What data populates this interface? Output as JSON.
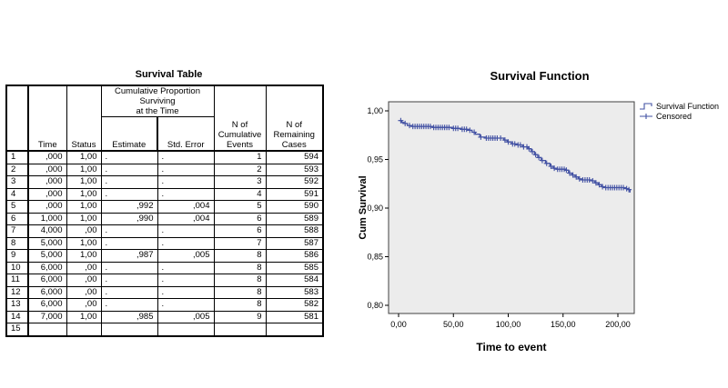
{
  "table": {
    "title": "Survival Table",
    "headers": {
      "time": "Time",
      "status": "Status",
      "cps_group": "Cumulative Proportion Surviving at the Time",
      "cps_lines": [
        "Cumulative Proportion Surviving",
        "at the Time"
      ],
      "estimate": "Estimate",
      "std_error": "Std. Error",
      "n_events": "N of Cumulative Events",
      "n_remaining": "N of Remaining Cases"
    },
    "rows": [
      {
        "n": "1",
        "time": ",000",
        "status": "1,00",
        "estimate": ".",
        "std_error": ".",
        "events": "1",
        "remaining": "594"
      },
      {
        "n": "2",
        "time": ",000",
        "status": "1,00",
        "estimate": ".",
        "std_error": ".",
        "events": "2",
        "remaining": "593"
      },
      {
        "n": "3",
        "time": ",000",
        "status": "1,00",
        "estimate": ".",
        "std_error": ".",
        "events": "3",
        "remaining": "592"
      },
      {
        "n": "4",
        "time": ",000",
        "status": "1,00",
        "estimate": ".",
        "std_error": ".",
        "events": "4",
        "remaining": "591"
      },
      {
        "n": "5",
        "time": ",000",
        "status": "1,00",
        "estimate": ",992",
        "std_error": ",004",
        "events": "5",
        "remaining": "590"
      },
      {
        "n": "6",
        "time": "1,000",
        "status": "1,00",
        "estimate": ",990",
        "std_error": ",004",
        "events": "6",
        "remaining": "589"
      },
      {
        "n": "7",
        "time": "4,000",
        "status": ",00",
        "estimate": ".",
        "std_error": ".",
        "events": "6",
        "remaining": "588"
      },
      {
        "n": "8",
        "time": "5,000",
        "status": "1,00",
        "estimate": ".",
        "std_error": ".",
        "events": "7",
        "remaining": "587"
      },
      {
        "n": "9",
        "time": "5,000",
        "status": "1,00",
        "estimate": ",987",
        "std_error": ",005",
        "events": "8",
        "remaining": "586"
      },
      {
        "n": "10",
        "time": "6,000",
        "status": ",00",
        "estimate": ".",
        "std_error": ".",
        "events": "8",
        "remaining": "585"
      },
      {
        "n": "11",
        "time": "6,000",
        "status": ",00",
        "estimate": ".",
        "std_error": ".",
        "events": "8",
        "remaining": "584"
      },
      {
        "n": "12",
        "time": "6,000",
        "status": ",00",
        "estimate": ".",
        "std_error": ".",
        "events": "8",
        "remaining": "583"
      },
      {
        "n": "13",
        "time": "6,000",
        "status": ",00",
        "estimate": ".",
        "std_error": ".",
        "events": "8",
        "remaining": "582"
      },
      {
        "n": "14",
        "time": "7,000",
        "status": "1,00",
        "estimate": ",985",
        "std_error": ",005",
        "events": "9",
        "remaining": "581"
      },
      {
        "n": "15",
        "time": "",
        "status": "",
        "estimate": "",
        "std_error": "",
        "events": "",
        "remaining": ""
      }
    ]
  },
  "chart_data": {
    "type": "line",
    "subtype": "kaplan-meier-step",
    "title": "Survival Function",
    "xlabel": "Time to event",
    "ylabel": "Cum Survival",
    "xlim": [
      -10,
      215
    ],
    "ylim": [
      0.792,
      1.009
    ],
    "x_ticks": [
      0,
      50,
      100,
      150,
      200
    ],
    "x_tick_labels": [
      "0,00",
      "50,00",
      "100,00",
      "150,00",
      "200,00"
    ],
    "y_ticks": [
      1.0,
      0.95,
      0.9,
      0.85,
      0.8
    ],
    "y_tick_labels": [
      "1,00",
      "0,95",
      "0,90",
      "0,85",
      "0,80"
    ],
    "grid": false,
    "legend_position": "top-right",
    "legend": [
      {
        "label": "Survival Function",
        "glyph": "step-line-icon"
      },
      {
        "label": "Censored",
        "glyph": "plus-line-icon"
      }
    ],
    "colors": {
      "curve": "#4251a3",
      "plot_bg": "#ececec",
      "plot_border": "#404040",
      "text": "#000000"
    },
    "series": [
      {
        "name": "Survival Function",
        "points": [
          [
            1,
            0.99
          ],
          [
            3,
            0.988
          ],
          [
            5,
            0.987
          ],
          [
            8,
            0.985
          ],
          [
            12,
            0.984
          ],
          [
            28,
            0.984
          ],
          [
            31,
            0.983
          ],
          [
            45,
            0.983
          ],
          [
            49,
            0.982
          ],
          [
            57,
            0.981
          ],
          [
            63,
            0.98
          ],
          [
            67,
            0.978
          ],
          [
            70,
            0.976
          ],
          [
            74,
            0.973
          ],
          [
            79,
            0.972
          ],
          [
            92,
            0.972
          ],
          [
            96,
            0.97
          ],
          [
            99,
            0.968
          ],
          [
            103,
            0.966
          ],
          [
            108,
            0.965
          ],
          [
            113,
            0.963
          ],
          [
            118,
            0.961
          ],
          [
            121,
            0.958
          ],
          [
            124,
            0.955
          ],
          [
            127,
            0.952
          ],
          [
            130,
            0.949
          ],
          [
            134,
            0.946
          ],
          [
            138,
            0.943
          ],
          [
            141,
            0.941
          ],
          [
            144,
            0.94
          ],
          [
            152,
            0.939
          ],
          [
            155,
            0.936
          ],
          [
            158,
            0.934
          ],
          [
            161,
            0.932
          ],
          [
            164,
            0.93
          ],
          [
            167,
            0.929
          ],
          [
            176,
            0.928
          ],
          [
            179,
            0.926
          ],
          [
            182,
            0.924
          ],
          [
            185,
            0.922
          ],
          [
            188,
            0.921
          ],
          [
            204,
            0.921
          ],
          [
            207,
            0.92
          ],
          [
            210,
            0.919
          ],
          [
            211,
            0.916
          ]
        ]
      }
    ],
    "censored_times": [
      2,
      6,
      10,
      13,
      15,
      17,
      19,
      21,
      23,
      25,
      27,
      29,
      32,
      34,
      36,
      38,
      40,
      42,
      44,
      46,
      50,
      52,
      54,
      58,
      60,
      62,
      65,
      69,
      75,
      80,
      82,
      84,
      86,
      88,
      90,
      93,
      97,
      100,
      104,
      106,
      109,
      111,
      114,
      117,
      119,
      122,
      125,
      128,
      131,
      135,
      139,
      142,
      145,
      147,
      149,
      151,
      153,
      156,
      159,
      162,
      165,
      168,
      170,
      172,
      174,
      177,
      180,
      183,
      186,
      189,
      191,
      193,
      195,
      197,
      199,
      201,
      203,
      205,
      208,
      210
    ]
  }
}
